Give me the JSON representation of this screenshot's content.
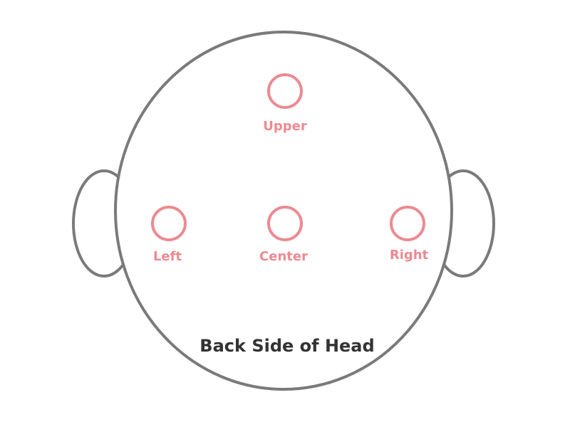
{
  "colors": {
    "outline": "#7a7a7a",
    "point": "#ec8a91",
    "caption": "#333333"
  },
  "points": {
    "upper": {
      "label": "Upper"
    },
    "left": {
      "label": "Left"
    },
    "center": {
      "label": "Center"
    },
    "right": {
      "label": "Right"
    }
  },
  "caption": "Back Side of Head"
}
